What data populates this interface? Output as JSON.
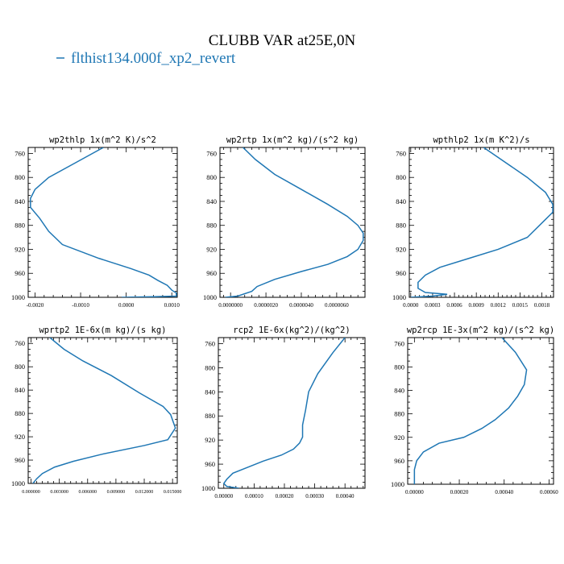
{
  "figure": {
    "title": "CLUBB VAR at25E,0N",
    "legend_label": "flthist134.000f_xp2_revert",
    "line_color": "#1f77b4"
  },
  "chart_data": [
    {
      "type": "line",
      "title": "wp2thlp  1x(m^2 K)/s^2",
      "xlim": [
        -0.00215,
        0.00112
      ],
      "ylim": [
        1000,
        750
      ],
      "xticks": [
        -0.002,
        -0.001,
        0.0,
        0.001
      ],
      "xtick_labels": [
        "-0.0020",
        "-0.0010",
        "0.0000",
        "0.0010"
      ],
      "yticks": [
        760,
        800,
        840,
        880,
        920,
        960,
        1000
      ],
      "series": [
        {
          "x": [
            -0.0005,
            -0.0011,
            -0.0017,
            -0.002,
            -0.0021,
            -0.0021,
            -0.0019,
            -0.0017,
            -0.0014,
            -0.0006,
            0.0001,
            0.0005,
            0.0007,
            0.0009,
            0.001,
            0.0011,
            0.0011,
            0.0006,
            -0.0001
          ],
          "y": [
            750,
            775,
            800,
            820,
            835,
            850,
            868,
            890,
            912,
            935,
            952,
            963,
            972,
            980,
            988,
            993,
            998,
            999,
            1000
          ]
        }
      ]
    },
    {
      "type": "line",
      "title": "wp2rtp  1x(m^2 kg)/(s^2 kg)",
      "xlim": [
        -6e-07,
        7.6e-06
      ],
      "ylim": [
        1000,
        750
      ],
      "xticks": [
        0.0,
        2e-06,
        4e-06,
        6e-06
      ],
      "xtick_labels": [
        "0.0000000",
        "0.0000020",
        "0.0000040",
        "0.0000060"
      ],
      "yticks": [
        760,
        800,
        840,
        880,
        920,
        960,
        1000
      ],
      "series": [
        {
          "x": [
            7e-07,
            1.4e-06,
            2.5e-06,
            4e-06,
            5.5e-06,
            6.6e-06,
            7.2e-06,
            7.5e-06,
            7.5e-06,
            7.2e-06,
            6.6e-06,
            5.5e-06,
            4e-06,
            2.5e-06,
            1.5e-06,
            1.2e-06,
            4e-07,
            -3e-07
          ],
          "y": [
            750,
            770,
            795,
            820,
            845,
            865,
            880,
            893,
            905,
            920,
            932,
            945,
            957,
            970,
            982,
            990,
            998,
            1000
          ]
        }
      ]
    },
    {
      "type": "line",
      "title": "wpthlp2  1x(m K^2)/s",
      "xlim": [
        -2e-05,
        0.00196
      ],
      "ylim": [
        1000,
        750
      ],
      "xticks": [
        0.0,
        0.0003,
        0.0006,
        0.0009,
        0.0012,
        0.0015,
        0.0018
      ],
      "xtick_labels": [
        "0.0000",
        "0.0003",
        "0.0006",
        "0.0009",
        "0.0012",
        "0.0015",
        "0.0018"
      ],
      "yticks": [
        760,
        800,
        840,
        880,
        920,
        960,
        1000
      ],
      "series": [
        {
          "x": [
            0.001,
            0.0013,
            0.0016,
            0.00185,
            0.00195,
            0.00195,
            0.00185,
            0.0016,
            0.0012,
            0.0008,
            0.0004,
            0.0002,
            0.0001,
            0.0001,
            0.0002,
            0.0005,
            0.0003,
            0.0
          ],
          "y": [
            750,
            775,
            800,
            825,
            845,
            858,
            870,
            900,
            920,
            935,
            950,
            963,
            975,
            985,
            992,
            995,
            998,
            1000
          ]
        }
      ]
    },
    {
      "type": "line",
      "title": "wprtp2  1E-6x(m kg)/(s kg)",
      "xlim": [
        -0.0003,
        0.0155
      ],
      "ylim": [
        1000,
        750
      ],
      "xticks": [
        0.0,
        0.003,
        0.006,
        0.009,
        0.012,
        0.015
      ],
      "xtick_labels": [
        "0.000000",
        "0.003000",
        "0.006000",
        "0.009000",
        "0.012000",
        "0.015000"
      ],
      "yticks": [
        760,
        800,
        840,
        880,
        920,
        960,
        1000
      ],
      "series": [
        {
          "x": [
            0.002,
            0.0035,
            0.0055,
            0.0085,
            0.0115,
            0.014,
            0.0148,
            0.0153,
            0.0145,
            0.012,
            0.0075,
            0.0045,
            0.0025,
            0.0012,
            0.0006,
            0.0002
          ],
          "y": [
            750,
            770,
            790,
            815,
            845,
            868,
            882,
            905,
            925,
            935,
            950,
            962,
            972,
            983,
            992,
            1000
          ]
        }
      ]
    },
    {
      "type": "line",
      "title": "rcp2  1E-6x(kg^2)/(kg^2)",
      "xlim": [
        -1.8e-05,
        0.000466
      ],
      "ylim": [
        1000,
        750
      ],
      "xticks": [
        0.0,
        0.0001,
        0.0002,
        0.0003,
        0.0004
      ],
      "xtick_labels": [
        "0.00000",
        "0.00010",
        "0.00020",
        "0.00030",
        "0.00040"
      ],
      "yticks": [
        760,
        800,
        840,
        880,
        920,
        960,
        1000
      ],
      "series": [
        {
          "x": [
            0.0004,
            0.00036,
            0.00031,
            0.00028,
            0.00027,
            0.00026,
            0.00026,
            0.00025,
            0.00023,
            0.00019,
            0.00013,
            8e-05,
            3e-05,
            1e-05,
            0.0,
            1e-05,
            5e-05
          ],
          "y": [
            750,
            775,
            810,
            840,
            870,
            895,
            915,
            925,
            935,
            945,
            955,
            965,
            975,
            985,
            992,
            997,
            1000
          ]
        }
      ]
    },
    {
      "type": "line",
      "title": "wp2rcp  1E-3x(m^2 kg)/(s^2 kg)",
      "xlim": [
        -3e-05,
        0.00062
      ],
      "ylim": [
        1000,
        750
      ],
      "xticks": [
        0.0,
        0.0002,
        0.0004,
        0.0006
      ],
      "xtick_labels": [
        "0.00000",
        "0.00020",
        "0.00040",
        "0.00060"
      ],
      "yticks": [
        760,
        800,
        840,
        880,
        920,
        960,
        1000
      ],
      "series": [
        {
          "x": [
            0.00039,
            0.00045,
            0.0005,
            0.00049,
            0.00046,
            0.00042,
            0.00036,
            0.0003,
            0.00022,
            0.00011,
            4e-05,
            1e-05,
            0.0,
            0.0,
            0.0
          ],
          "y": [
            750,
            775,
            805,
            830,
            850,
            870,
            890,
            905,
            920,
            930,
            945,
            960,
            975,
            990,
            1000
          ]
        }
      ]
    }
  ]
}
